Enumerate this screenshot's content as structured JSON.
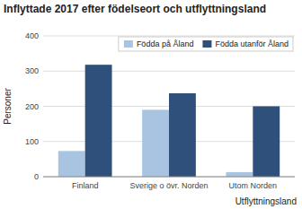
{
  "chart_data": {
    "type": "bar",
    "title": "Inflyttade 2017 efter födelseort och utflyttningsland",
    "xlabel": "Utflyttningsland",
    "ylabel": "Personer",
    "categories": [
      "Finland",
      "Sverige o övr. Norden",
      "Utom Norden"
    ],
    "series": [
      {
        "name": "Födda på Åland",
        "color": "#a8c4e0",
        "values": [
          73,
          190,
          13
        ]
      },
      {
        "name": "Födda utanför Åland",
        "color": "#2e507a",
        "values": [
          318,
          237,
          200
        ]
      }
    ],
    "ylim": [
      0,
      400
    ],
    "yticks": [
      0,
      100,
      200,
      300,
      400
    ],
    "grid": true,
    "legend": "upper right"
  }
}
